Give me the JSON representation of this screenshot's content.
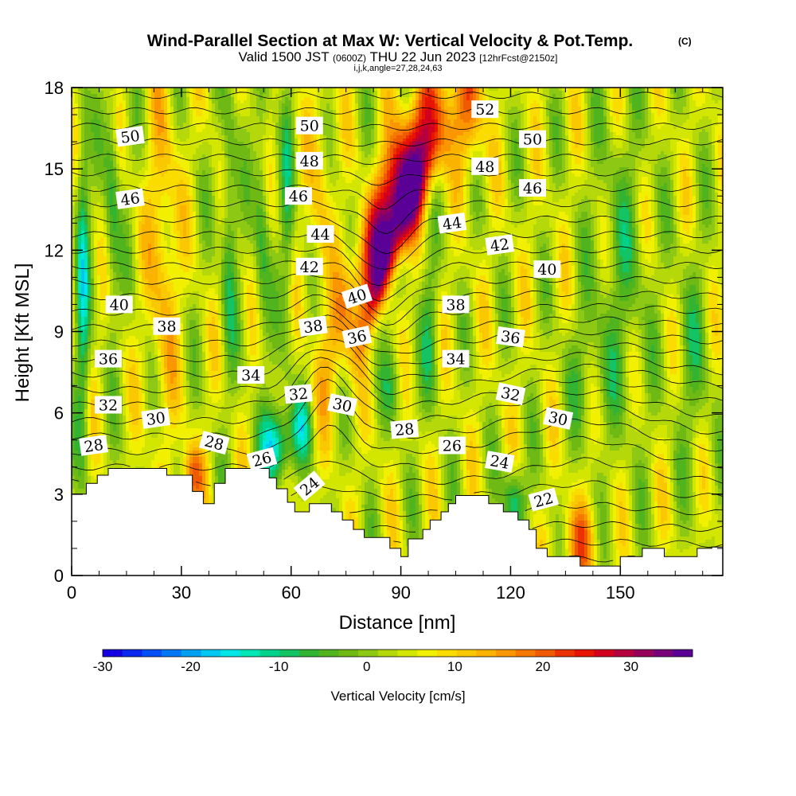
{
  "chart_data": {
    "type": "heatmap",
    "title": "Wind-Parallel Section at Max W: Vertical Velocity & Pot.Temp.",
    "title_mark": "(C)",
    "subtitle_main": "Valid 1500 JST",
    "subtitle_z": "(0600Z)",
    "subtitle_date": "THU 22 Jun 2023",
    "subtitle_fcst": "[12hrFcst@2150z]",
    "subtitle_idx": "i,j,k,angle=27,28,24,63",
    "xlabel": "Distance [nm]",
    "ylabel": "Height [Kft MSL]",
    "xlim": [
      0,
      178
    ],
    "ylim": [
      0,
      18
    ],
    "x_ticks": [
      0,
      30,
      60,
      90,
      120,
      150
    ],
    "y_ticks": [
      0,
      3,
      6,
      9,
      12,
      15,
      18
    ],
    "colorbar": {
      "label": "Vertical Velocity [cm/s]",
      "range": [
        -30,
        37
      ],
      "ticks": [
        -30,
        -20,
        -10,
        0,
        10,
        20,
        30
      ],
      "colors": [
        "#1400e0",
        "#0a28f0",
        "#0050f5",
        "#0078f5",
        "#00a0f0",
        "#00c8f0",
        "#00e6e6",
        "#00e6b4",
        "#00d28c",
        "#14c364",
        "#32b432",
        "#50b41e",
        "#6eb914",
        "#8cc814",
        "#b4d80a",
        "#d2e600",
        "#f0f000",
        "#fadc00",
        "#fac800",
        "#fab400",
        "#fa9600",
        "#f57800",
        "#f05a00",
        "#eb3200",
        "#e61400",
        "#d2001e",
        "#b4003c",
        "#96005a",
        "#780078",
        "#5a0096"
      ]
    },
    "theta_labels": [
      {
        "x": 16,
        "y": 16.2,
        "label": "50",
        "rot": -8
      },
      {
        "x": 65,
        "y": 16.6,
        "label": "50",
        "rot": 0
      },
      {
        "x": 126,
        "y": 16.1,
        "label": "50",
        "rot": 0
      },
      {
        "x": 113,
        "y": 17.2,
        "label": "52",
        "rot": 0
      },
      {
        "x": 65,
        "y": 15.3,
        "label": "48",
        "rot": 0
      },
      {
        "x": 113,
        "y": 15.1,
        "label": "48",
        "rot": 0
      },
      {
        "x": 16,
        "y": 13.9,
        "label": "46",
        "rot": -8
      },
      {
        "x": 62,
        "y": 14.0,
        "label": "46",
        "rot": 0
      },
      {
        "x": 126,
        "y": 14.3,
        "label": "46",
        "rot": 0
      },
      {
        "x": 68,
        "y": 12.6,
        "label": "44",
        "rot": 0
      },
      {
        "x": 104,
        "y": 13.0,
        "label": "44",
        "rot": -8
      },
      {
        "x": 65,
        "y": 11.4,
        "label": "42",
        "rot": 0
      },
      {
        "x": 117,
        "y": 12.2,
        "label": "42",
        "rot": -8
      },
      {
        "x": 130,
        "y": 11.3,
        "label": "40",
        "rot": 0
      },
      {
        "x": 13,
        "y": 10.0,
        "label": "40",
        "rot": 0
      },
      {
        "x": 78,
        "y": 10.3,
        "label": "40",
        "rot": -18
      },
      {
        "x": 105,
        "y": 10.0,
        "label": "38",
        "rot": 0
      },
      {
        "x": 26,
        "y": 9.2,
        "label": "38",
        "rot": 0
      },
      {
        "x": 66,
        "y": 9.2,
        "label": "38",
        "rot": -8
      },
      {
        "x": 78,
        "y": 8.8,
        "label": "36",
        "rot": -12
      },
      {
        "x": 120,
        "y": 8.8,
        "label": "36",
        "rot": 8
      },
      {
        "x": 10,
        "y": 8.0,
        "label": "36",
        "rot": 0
      },
      {
        "x": 105,
        "y": 8.0,
        "label": "34",
        "rot": 0
      },
      {
        "x": 49,
        "y": 7.4,
        "label": "34",
        "rot": 0
      },
      {
        "x": 10,
        "y": 6.3,
        "label": "32",
        "rot": 0
      },
      {
        "x": 62,
        "y": 6.7,
        "label": "32",
        "rot": -5
      },
      {
        "x": 120,
        "y": 6.7,
        "label": "32",
        "rot": 12
      },
      {
        "x": 74,
        "y": 6.3,
        "label": "30",
        "rot": 12
      },
      {
        "x": 23,
        "y": 5.8,
        "label": "30",
        "rot": -8
      },
      {
        "x": 133,
        "y": 5.8,
        "label": "30",
        "rot": 12
      },
      {
        "x": 91,
        "y": 5.4,
        "label": "28",
        "rot": -5
      },
      {
        "x": 6,
        "y": 4.8,
        "label": "28",
        "rot": -8
      },
      {
        "x": 39,
        "y": 4.9,
        "label": "28",
        "rot": 15
      },
      {
        "x": 104,
        "y": 4.8,
        "label": "26",
        "rot": 0
      },
      {
        "x": 52,
        "y": 4.3,
        "label": "26",
        "rot": -15
      },
      {
        "x": 117,
        "y": 4.2,
        "label": "24",
        "rot": 10
      },
      {
        "x": 65,
        "y": 3.3,
        "label": "24",
        "rot": -40
      },
      {
        "x": 129,
        "y": 2.8,
        "label": "22",
        "rot": -15
      }
    ]
  }
}
